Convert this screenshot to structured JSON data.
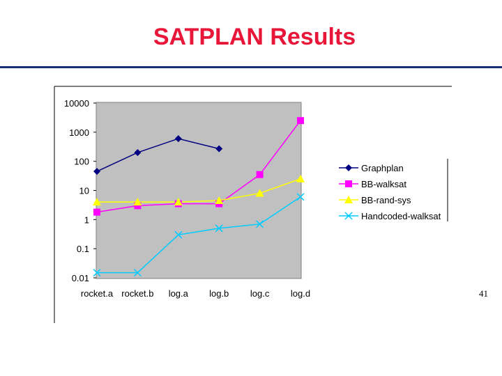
{
  "slide": {
    "title": "SATPLAN Results",
    "page_number": "41"
  },
  "chart_data": {
    "type": "line",
    "title": "",
    "xlabel": "",
    "ylabel": "",
    "y_scale": "log",
    "ylim": [
      0.01,
      10000
    ],
    "y_ticks": [
      "10000",
      "1000",
      "100",
      "10",
      "1",
      "0.1",
      "0.01"
    ],
    "categories": [
      "rocket.a",
      "rocket.b",
      "log.a",
      "log.b",
      "log.c",
      "log.d"
    ],
    "background": "#c0c0c0",
    "grid": false,
    "legend_position": "right",
    "series": [
      {
        "name": "Graphplan",
        "color": "#000080",
        "marker": "diamond",
        "values": [
          45,
          200,
          600,
          270,
          null,
          null
        ]
      },
      {
        "name": "BB-walksat",
        "color": "#ff00ff",
        "marker": "square",
        "values": [
          1.8,
          3,
          3.5,
          3.5,
          35,
          2500
        ]
      },
      {
        "name": "BB-rand-sys",
        "color": "#ffff00",
        "marker": "triangle",
        "values": [
          4,
          4,
          4,
          4.5,
          8,
          25
        ]
      },
      {
        "name": "Handcoded-walksat",
        "color": "#00ccff",
        "marker": "x",
        "values": [
          0.015,
          0.015,
          0.3,
          0.5,
          0.7,
          6
        ]
      }
    ]
  }
}
